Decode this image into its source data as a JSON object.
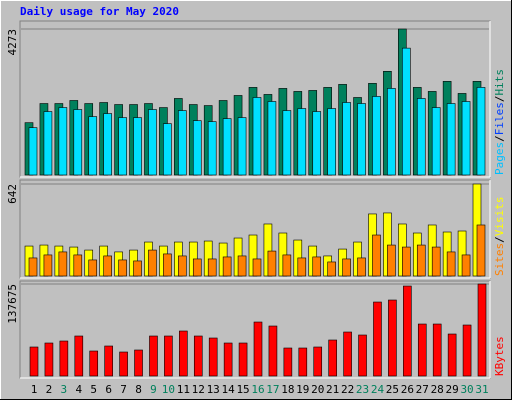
{
  "chart_data": [
    {
      "type": "bar",
      "title": "Daily usage for May 2020",
      "ylim": [
        0,
        4273
      ],
      "yticks": [
        4273
      ],
      "legend_separator": "/",
      "legend": [
        {
          "name": "Pages",
          "color": "#00c0ff"
        },
        {
          "name": "Files",
          "color": "#0040ff"
        },
        {
          "name": "Hits",
          "color": "#00805c"
        }
      ],
      "series": [
        {
          "name": "Hits",
          "color": "#00805c",
          "values": [
            1532,
            2092,
            2092,
            2181,
            2092,
            2122,
            2063,
            2063,
            2092,
            1974,
            2240,
            2063,
            2033,
            2181,
            2328,
            2564,
            2358,
            2534,
            2446,
            2475,
            2564,
            2652,
            2269,
            2682,
            3035,
            4273,
            2564,
            2446,
            2741,
            2387,
            2741
          ]
        },
        {
          "name": "Pages",
          "color": "#00e0ff",
          "values": [
            1385,
            1857,
            1974,
            1916,
            1709,
            1798,
            1680,
            1680,
            1916,
            1503,
            1886,
            1591,
            1562,
            1650,
            1680,
            2269,
            2151,
            1886,
            1945,
            1857,
            1945,
            2122,
            2092,
            2299,
            2534,
            3713,
            2240,
            1974,
            2092,
            2151,
            2564
          ]
        }
      ]
    },
    {
      "type": "bar",
      "ylim": [
        0,
        642
      ],
      "yticks": [
        642
      ],
      "legend_separator": "/",
      "legend": [
        {
          "name": "Sites",
          "color": "#ff8000"
        },
        {
          "name": "Visits",
          "color": "#ffff00"
        }
      ],
      "series": [
        {
          "name": "Visits",
          "color": "#ffff00",
          "values": [
            209,
            216,
            209,
            202,
            181,
            209,
            168,
            181,
            237,
            209,
            237,
            237,
            244,
            230,
            265,
            286,
            363,
            300,
            251,
            209,
            140,
            188,
            237,
            433,
            440,
            363,
            300,
            356,
            307,
            314,
            642
          ]
        },
        {
          "name": "Sites",
          "color": "#ff8000",
          "values": [
            126,
            147,
            168,
            147,
            112,
            140,
            112,
            105,
            181,
            154,
            140,
            119,
            119,
            133,
            140,
            119,
            174,
            147,
            126,
            133,
            98,
            119,
            126,
            286,
            216,
            202,
            216,
            202,
            168,
            147,
            356
          ]
        }
      ]
    },
    {
      "type": "bar",
      "ylim": [
        0,
        137675
      ],
      "yticks": [
        137675
      ],
      "legend": [
        {
          "name": "KBytes",
          "color": "#ff0000"
        }
      ],
      "series": [
        {
          "name": "KBytes",
          "color": "#ff0000",
          "values": [
            43390,
            49370,
            52360,
            59840,
            37400,
            44880,
            35900,
            38900,
            59840,
            59840,
            67320,
            59840,
            56850,
            49370,
            49370,
            80780,
            74800,
            41890,
            41890,
            43390,
            53860,
            65820,
            61340,
            110700,
            113700,
            134640,
            77790,
            77790,
            62830,
            76300,
            137675
          ]
        }
      ],
      "categories": [
        "1",
        "2",
        "3",
        "4",
        "5",
        "6",
        "7",
        "8",
        "9",
        "10",
        "11",
        "12",
        "13",
        "14",
        "15",
        "16",
        "17",
        "18",
        "19",
        "20",
        "21",
        "22",
        "23",
        "24",
        "25",
        "26",
        "27",
        "28",
        "29",
        "30",
        "31"
      ],
      "category_colors": [
        "#000000",
        "#000000",
        "#00805c",
        "#000000",
        "#000000",
        "#000000",
        "#000000",
        "#000000",
        "#00805c",
        "#00805c",
        "#000000",
        "#000000",
        "#000000",
        "#000000",
        "#000000",
        "#00805c",
        "#00805c",
        "#000000",
        "#000000",
        "#000000",
        "#000000",
        "#000000",
        "#00805c",
        "#00805c",
        "#000000",
        "#000000",
        "#000000",
        "#000000",
        "#000000",
        "#00805c",
        "#00805c"
      ]
    }
  ]
}
